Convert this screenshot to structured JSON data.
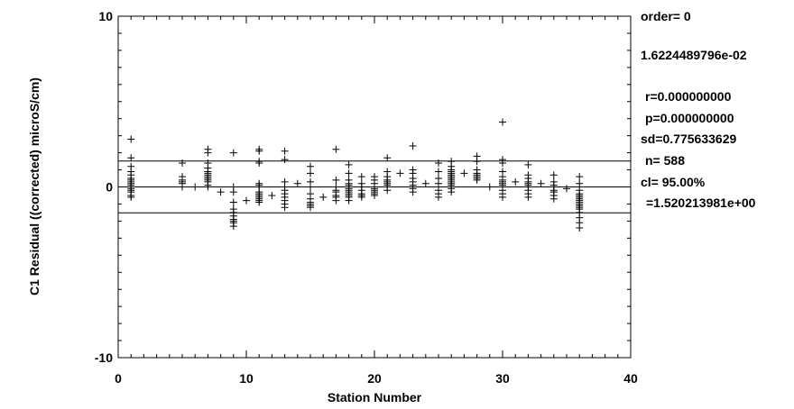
{
  "chart_data": {
    "type": "scatter",
    "xlabel": "Station Number",
    "ylabel": "C1 Residual ((corrected) microS/cm)",
    "xlim": [
      0,
      40
    ],
    "ylim": [
      -10,
      10
    ],
    "x_ticks": [
      0,
      10,
      20,
      30,
      40
    ],
    "y_ticks": [
      -10,
      0,
      10
    ],
    "marker": "plus",
    "grid": false,
    "reference_lines": [
      1.520213981,
      0,
      -1.520213981
    ],
    "annotations": [
      "order= 0",
      "1.6224489796e-02",
      "r=0.000000000",
      "p=0.000000000",
      "sd=0.775633629",
      "n=  588",
      "cl=  95.00%",
      "=1.520213981e+00"
    ],
    "points": [
      [
        1,
        2.8
      ],
      [
        1,
        1.7
      ],
      [
        1,
        1.2
      ],
      [
        1,
        0.9
      ],
      [
        1,
        0.7
      ],
      [
        1,
        0.5
      ],
      [
        1,
        0.4
      ],
      [
        1,
        0.3
      ],
      [
        1,
        0.2
      ],
      [
        1,
        0.1
      ],
      [
        1,
        0.0
      ],
      [
        1,
        -0.1
      ],
      [
        1,
        -0.2
      ],
      [
        1,
        -0.3
      ],
      [
        1,
        -0.5
      ],
      [
        1,
        -0.6
      ],
      [
        5,
        1.4
      ],
      [
        5,
        0.6
      ],
      [
        5,
        0.4
      ],
      [
        5,
        0.3
      ],
      [
        5,
        0.2
      ],
      [
        5,
        0.0
      ],
      [
        6,
        0.0
      ],
      [
        7,
        2.2
      ],
      [
        7,
        2.0
      ],
      [
        7,
        1.4
      ],
      [
        7,
        1.1
      ],
      [
        7,
        0.9
      ],
      [
        7,
        0.8
      ],
      [
        7,
        0.7
      ],
      [
        7,
        0.6
      ],
      [
        7,
        0.5
      ],
      [
        7,
        0.4
      ],
      [
        7,
        0.3
      ],
      [
        7,
        0.1
      ],
      [
        7,
        0.0
      ],
      [
        8,
        -0.3
      ],
      [
        9,
        2.0
      ],
      [
        9,
        0.0
      ],
      [
        9,
        -0.3
      ],
      [
        9,
        -0.9
      ],
      [
        9,
        -1.3
      ],
      [
        9,
        -1.5
      ],
      [
        9,
        -1.7
      ],
      [
        9,
        -1.9
      ],
      [
        9,
        -2.0
      ],
      [
        9,
        -2.1
      ],
      [
        9,
        -2.3
      ],
      [
        10,
        -0.8
      ],
      [
        11,
        2.2
      ],
      [
        11,
        2.1
      ],
      [
        11,
        1.5
      ],
      [
        11,
        1.4
      ],
      [
        11,
        0.2
      ],
      [
        11,
        0.1
      ],
      [
        11,
        0.0
      ],
      [
        11,
        -0.3
      ],
      [
        11,
        -0.4
      ],
      [
        11,
        -0.5
      ],
      [
        11,
        -0.6
      ],
      [
        11,
        -0.7
      ],
      [
        11,
        -0.8
      ],
      [
        11,
        -0.9
      ],
      [
        12,
        -0.5
      ],
      [
        13,
        2.1
      ],
      [
        13,
        1.6
      ],
      [
        13,
        0.3
      ],
      [
        13,
        0.0
      ],
      [
        13,
        -0.2
      ],
      [
        13,
        -0.4
      ],
      [
        13,
        -0.6
      ],
      [
        13,
        -0.8
      ],
      [
        13,
        -1.0
      ],
      [
        13,
        -1.2
      ],
      [
        14,
        0.2
      ],
      [
        15,
        1.2
      ],
      [
        15,
        0.8
      ],
      [
        15,
        0.3
      ],
      [
        15,
        0.0
      ],
      [
        15,
        -0.4
      ],
      [
        15,
        -0.7
      ],
      [
        15,
        -0.9
      ],
      [
        15,
        -1.0
      ],
      [
        15,
        -1.1
      ],
      [
        15,
        -1.2
      ],
      [
        16,
        -0.6
      ],
      [
        17,
        2.2
      ],
      [
        17,
        0.4
      ],
      [
        17,
        0.0
      ],
      [
        17,
        -0.2
      ],
      [
        17,
        -0.3
      ],
      [
        17,
        -0.5
      ],
      [
        17,
        -0.6
      ],
      [
        17,
        -0.8
      ],
      [
        18,
        1.3
      ],
      [
        18,
        0.8
      ],
      [
        18,
        0.4
      ],
      [
        18,
        0.2
      ],
      [
        18,
        0.1
      ],
      [
        18,
        0.0
      ],
      [
        18,
        -0.1
      ],
      [
        18,
        -0.2
      ],
      [
        18,
        -0.3
      ],
      [
        18,
        -0.4
      ],
      [
        18,
        -0.5
      ],
      [
        18,
        -0.6
      ],
      [
        18,
        -0.8
      ],
      [
        19,
        0.6
      ],
      [
        19,
        0.2
      ],
      [
        19,
        0.0
      ],
      [
        19,
        -0.2
      ],
      [
        19,
        -0.4
      ],
      [
        19,
        -0.5
      ],
      [
        19,
        -0.6
      ],
      [
        20,
        0.6
      ],
      [
        20,
        0.4
      ],
      [
        20,
        0.2
      ],
      [
        20,
        0.0
      ],
      [
        20,
        -0.1
      ],
      [
        20,
        -0.2
      ],
      [
        20,
        -0.3
      ],
      [
        20,
        -0.4
      ],
      [
        20,
        -0.5
      ],
      [
        21,
        1.7
      ],
      [
        21,
        0.9
      ],
      [
        21,
        0.6
      ],
      [
        21,
        0.4
      ],
      [
        21,
        0.3
      ],
      [
        21,
        0.2
      ],
      [
        21,
        0.1
      ],
      [
        21,
        -0.2
      ],
      [
        22,
        0.8
      ],
      [
        23,
        2.4
      ],
      [
        23,
        1.0
      ],
      [
        23,
        0.8
      ],
      [
        23,
        0.5
      ],
      [
        23,
        0.3
      ],
      [
        23,
        0.1
      ],
      [
        23,
        -0.1
      ],
      [
        23,
        -0.3
      ],
      [
        24,
        0.2
      ],
      [
        25,
        1.4
      ],
      [
        25,
        0.9
      ],
      [
        25,
        0.5
      ],
      [
        25,
        0.2
      ],
      [
        25,
        0.0
      ],
      [
        25,
        -0.2
      ],
      [
        25,
        -0.4
      ],
      [
        25,
        -0.6
      ],
      [
        26,
        1.5
      ],
      [
        26,
        1.2
      ],
      [
        26,
        1.0
      ],
      [
        26,
        0.9
      ],
      [
        26,
        0.8
      ],
      [
        26,
        0.7
      ],
      [
        26,
        0.6
      ],
      [
        26,
        0.5
      ],
      [
        26,
        0.4
      ],
      [
        26,
        0.3
      ],
      [
        26,
        0.2
      ],
      [
        26,
        0.1
      ],
      [
        26,
        0.0
      ],
      [
        26,
        -0.1
      ],
      [
        26,
        -0.3
      ],
      [
        27,
        0.8
      ],
      [
        28,
        1.8
      ],
      [
        28,
        1.5
      ],
      [
        28,
        1.0
      ],
      [
        28,
        0.8
      ],
      [
        28,
        0.7
      ],
      [
        28,
        0.6
      ],
      [
        28,
        0.5
      ],
      [
        28,
        0.4
      ],
      [
        29,
        0.0
      ],
      [
        30,
        3.8
      ],
      [
        30,
        1.6
      ],
      [
        30,
        1.4
      ],
      [
        30,
        0.9
      ],
      [
        30,
        0.6
      ],
      [
        30,
        0.4
      ],
      [
        30,
        0.3
      ],
      [
        30,
        0.2
      ],
      [
        30,
        0.1
      ],
      [
        30,
        0.0
      ],
      [
        30,
        -0.2
      ],
      [
        30,
        -0.4
      ],
      [
        30,
        -0.6
      ],
      [
        31,
        0.3
      ],
      [
        32,
        1.3
      ],
      [
        32,
        0.7
      ],
      [
        32,
        0.5
      ],
      [
        32,
        0.3
      ],
      [
        32,
        0.2
      ],
      [
        32,
        0.1
      ],
      [
        32,
        0.0
      ],
      [
        32,
        -0.2
      ],
      [
        32,
        -0.4
      ],
      [
        32,
        -0.6
      ],
      [
        33,
        0.2
      ],
      [
        34,
        0.7
      ],
      [
        34,
        0.3
      ],
      [
        34,
        0.1
      ],
      [
        34,
        0.0
      ],
      [
        34,
        -0.2
      ],
      [
        34,
        -0.3
      ],
      [
        34,
        -0.5
      ],
      [
        34,
        -0.7
      ],
      [
        35,
        -0.1
      ],
      [
        36,
        0.6
      ],
      [
        36,
        0.2
      ],
      [
        36,
        -0.2
      ],
      [
        36,
        -0.4
      ],
      [
        36,
        -0.5
      ],
      [
        36,
        -0.6
      ],
      [
        36,
        -0.7
      ],
      [
        36,
        -0.8
      ],
      [
        36,
        -0.9
      ],
      [
        36,
        -1.0
      ],
      [
        36,
        -1.1
      ],
      [
        36,
        -1.2
      ],
      [
        36,
        -1.3
      ],
      [
        36,
        -1.5
      ],
      [
        36,
        -1.8
      ],
      [
        36,
        -2.1
      ],
      [
        36,
        -2.4
      ]
    ]
  }
}
